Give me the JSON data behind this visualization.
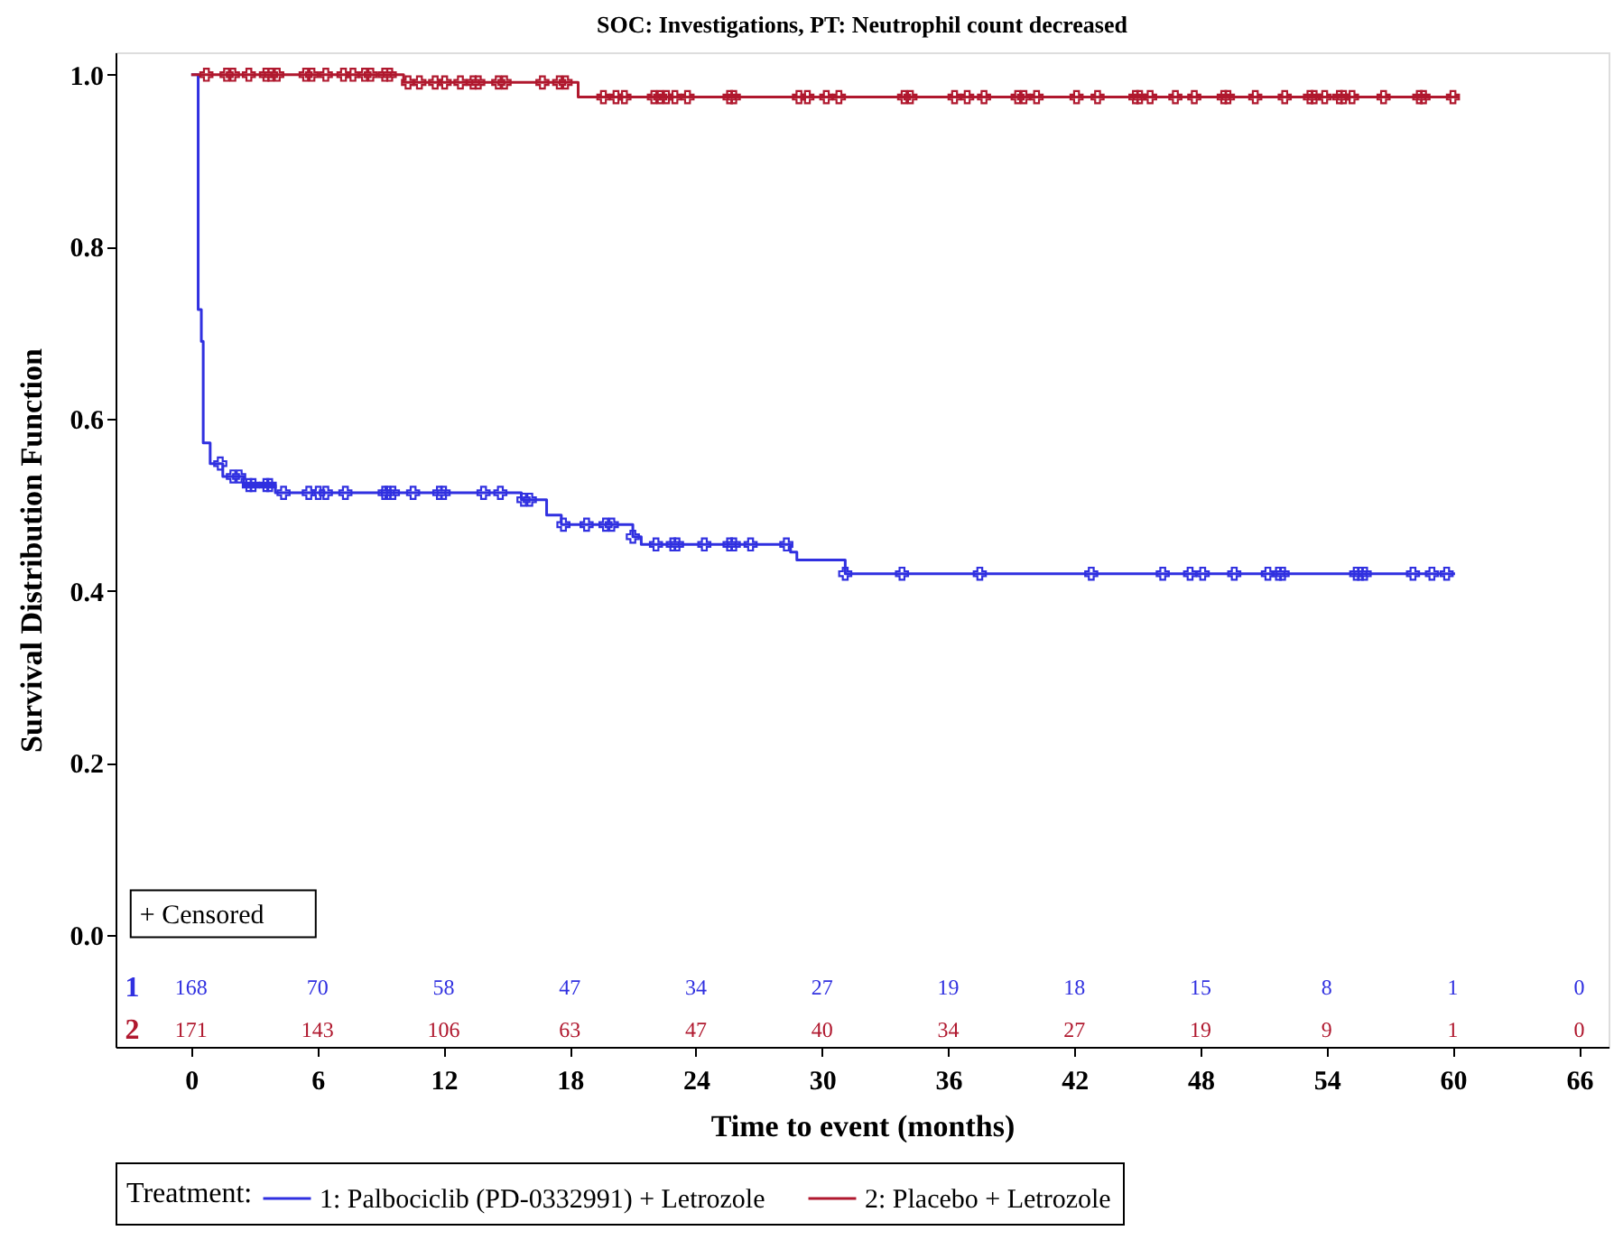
{
  "chart_data": {
    "type": "step",
    "title": "SOC: Investigations, PT: Neutrophil count decreased",
    "xlabel": "Time to event (months)",
    "ylabel": "Survival Distribution Function",
    "legend_title": "Treatment:",
    "xlim": [
      -3.6,
      67.4
    ],
    "ylim": [
      -0.13,
      1.026
    ],
    "xticks": [
      0,
      6,
      12,
      18,
      24,
      30,
      36,
      42,
      48,
      54,
      60,
      66
    ],
    "yticks": [
      {
        "value": 0,
        "label": "0.0"
      },
      0.2,
      0.4,
      0.6,
      0.8,
      {
        "value": 1,
        "label": "1.0"
      }
    ],
    "grid": false,
    "legend": "bottom",
    "line_style": "solid",
    "series": [
      {
        "name": "1: Palbociclib (PD-0332991) + Letrozole",
        "color": "#3030e0",
        "x": [
          0,
          0.33,
          0.48,
          0.57,
          0.9,
          1.5,
          2.5,
          4.0,
          15.7,
          16.9,
          17.6,
          21.0,
          21.4,
          28.5,
          28.8,
          31.1,
          60.1
        ],
        "values": [
          1.0,
          0.727,
          0.69,
          0.572,
          0.548,
          0.533,
          0.523,
          0.514,
          0.506,
          0.488,
          0.477,
          0.463,
          0.454,
          0.445,
          0.436,
          0.42,
          0.42
        ]
      },
      {
        "name": "2: Placebo + Letrozole",
        "color": "#b0182e",
        "x": [
          0,
          10.1,
          18.4,
          60.3
        ],
        "values": [
          1.0,
          0.991,
          0.974,
          0.974
        ]
      },
      {
        "type": "scatter",
        "marker": "cross",
        "color": "#3030e0",
        "x": [
          1.38,
          1.98,
          2.28,
          2.74,
          2.94,
          3.55,
          3.73,
          4.39,
          5.59,
          6.04,
          6.4,
          7.33,
          9.2,
          9.35,
          9.59,
          10.55,
          11.8,
          12.0,
          13.9,
          14.7,
          15.8,
          16.1,
          17.7,
          18.8,
          19.7,
          20.0,
          21.0,
          22.1,
          22.9,
          23.1,
          24.4,
          25.6,
          25.8,
          26.6,
          28.3,
          31.1,
          33.8,
          37.5,
          42.8,
          46.2,
          47.5,
          48.1,
          49.6,
          51.2,
          51.7,
          51.9,
          55.4,
          55.6,
          55.8,
          58.1,
          59.0,
          59.7
        ],
        "values": [
          0.548,
          0.533,
          0.533,
          0.523,
          0.523,
          0.523,
          0.523,
          0.514,
          0.514,
          0.514,
          0.514,
          0.514,
          0.514,
          0.514,
          0.514,
          0.514,
          0.514,
          0.514,
          0.514,
          0.514,
          0.506,
          0.506,
          0.477,
          0.477,
          0.477,
          0.477,
          0.463,
          0.454,
          0.454,
          0.454,
          0.454,
          0.454,
          0.454,
          0.454,
          0.454,
          0.42,
          0.42,
          0.42,
          0.42,
          0.42,
          0.42,
          0.42,
          0.42,
          0.42,
          0.42,
          0.42,
          0.42,
          0.42,
          0.42,
          0.42,
          0.42,
          0.42
        ]
      },
      {
        "type": "scatter",
        "marker": "cross",
        "color": "#b0182e",
        "x": [
          0.72,
          1.68,
          1.98,
          2.74,
          3.55,
          3.79,
          4.09,
          5.44,
          5.74,
          6.4,
          7.24,
          7.69,
          8.24,
          8.54,
          9.2,
          9.44,
          10.31,
          10.85,
          11.6,
          12.05,
          12.8,
          13.4,
          13.65,
          14.6,
          14.9,
          16.7,
          17.5,
          17.8,
          19.6,
          20.2,
          20.6,
          22.0,
          22.3,
          22.6,
          23.0,
          23.6,
          25.6,
          25.8,
          28.9,
          29.3,
          30.2,
          30.8,
          33.9,
          34.2,
          36.3,
          36.9,
          37.7,
          39.3,
          39.6,
          40.2,
          42.1,
          43.1,
          44.9,
          45.1,
          45.6,
          46.8,
          47.7,
          49.1,
          49.3,
          50.6,
          52.0,
          53.2,
          53.4,
          53.9,
          54.6,
          54.8,
          55.2,
          56.7,
          58.4,
          58.6,
          60.0
        ],
        "values": [
          1.0,
          1.0,
          1.0,
          1.0,
          1.0,
          1.0,
          1.0,
          1.0,
          1.0,
          1.0,
          1.0,
          1.0,
          1.0,
          1.0,
          1.0,
          1.0,
          0.991,
          0.991,
          0.991,
          0.991,
          0.991,
          0.991,
          0.991,
          0.991,
          0.991,
          0.991,
          0.991,
          0.991,
          0.974,
          0.974,
          0.974,
          0.974,
          0.974,
          0.974,
          0.974,
          0.974,
          0.974,
          0.974,
          0.974,
          0.974,
          0.974,
          0.974,
          0.974,
          0.974,
          0.974,
          0.974,
          0.974,
          0.974,
          0.974,
          0.974,
          0.974,
          0.974,
          0.974,
          0.974,
          0.974,
          0.974,
          0.974,
          0.974,
          0.974,
          0.974,
          0.974,
          0.974,
          0.974,
          0.974,
          0.974,
          0.974,
          0.974,
          0.974,
          0.974,
          0.974,
          0.974
        ]
      }
    ],
    "annotations": [
      "+ Censored",
      "1",
      "168",
      "70",
      "58",
      "47",
      "34",
      "27",
      "19",
      "18",
      "15",
      "8",
      "1",
      "0",
      "2",
      "171",
      "143",
      "106",
      "63",
      "47",
      "40",
      "34",
      "27",
      "19",
      "9",
      "1",
      "0"
    ]
  }
}
